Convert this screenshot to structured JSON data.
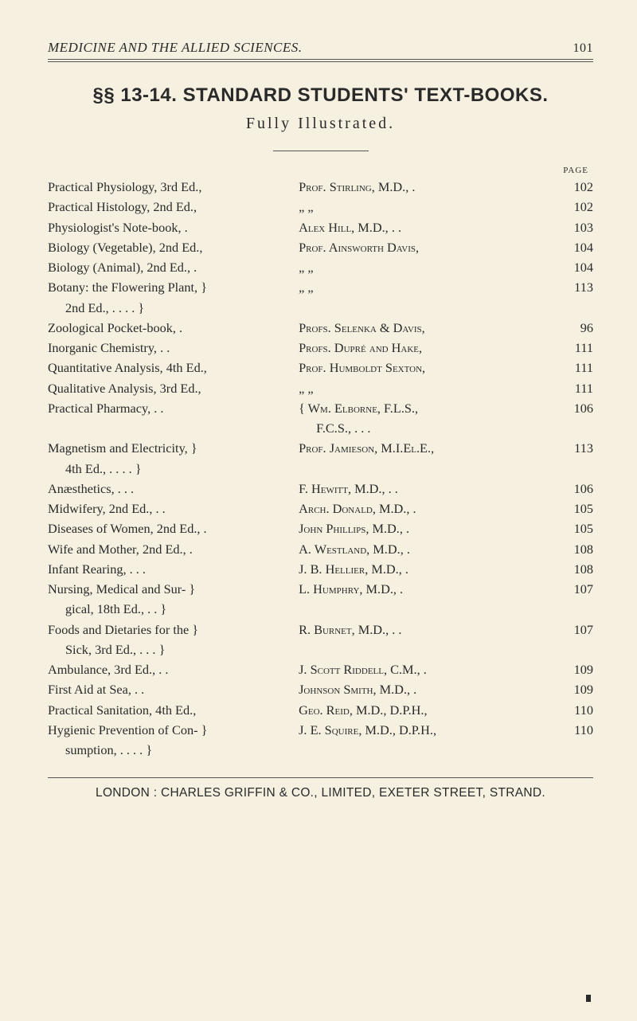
{
  "running_head": {
    "title": "MEDICINE AND THE ALLIED SCIENCES.",
    "page_number": "101"
  },
  "section": "§§ 13-14. STANDARD STUDENTS' TEXT-BOOKS.",
  "subtitle": "Fully Illustrated.",
  "page_label": "PAGE",
  "rows": [
    {
      "title": "Practical Physiology, 3rd Ed.,",
      "author": "Prof. Stirling, M.D., .",
      "page": "102"
    },
    {
      "title": "Practical Histology, 2nd Ed.,",
      "author": "„          „",
      "page": "102"
    },
    {
      "title": "Physiologist's Note-book,    .",
      "author": "Alex Hill, M.D., .    .",
      "page": "103"
    },
    {
      "title": "Biology (Vegetable), 2nd Ed.,",
      "author": "Prof. Ainsworth Davis,",
      "page": "104"
    },
    {
      "title": "Biology (Animal), 2nd Ed.,  .",
      "author": "„             „",
      "page": "104"
    },
    {
      "title": "Botany: the Flowering Plant, }\n  2nd Ed., .    .    .    . }",
      "author": "„             „",
      "page": "113"
    },
    {
      "title": "Zoological Pocket-book,     .",
      "author": "Profs. Selenka & Davis,",
      "page": "96"
    },
    {
      "title": "Inorganic Chemistry,  .    .",
      "author": "Profs. Dupré and Hake,",
      "page": "111"
    },
    {
      "title": "Quantitative Analysis, 4th Ed.,",
      "author": "Prof. Humboldt Sexton,",
      "page": "111"
    },
    {
      "title": "Qualitative Analysis, 3rd Ed.,",
      "author": "„             „",
      "page": "111"
    },
    {
      "title": "Practical Pharmacy,   .    .",
      "author": "{ Wm. Elborne, F.L.S.,\n  F.C.S.,    .    .    .",
      "page": "106"
    },
    {
      "title": "Magnetism and Electricity, }\n  4th Ed., .    .    .    . }",
      "author": "Prof. Jamieson, M.I.El.E.,",
      "page": "113"
    },
    {
      "title": "Anæsthetics,    .    .    .",
      "author": "F. Hewitt, M.D., .    .",
      "page": "106"
    },
    {
      "title": "Midwifery, 2nd Ed.,   .    .",
      "author": "Arch. Donald, M.D.,  .",
      "page": "105"
    },
    {
      "title": "Diseases of Women, 2nd Ed., .",
      "author": "John Phillips, M.D., .",
      "page": "105"
    },
    {
      "title": "Wife and Mother, 2nd Ed.,  .",
      "author": "A. Westland, M.D.,   .",
      "page": "108"
    },
    {
      "title": "Infant Rearing,  .    .    .",
      "author": "J. B. Hellier, M.D., .",
      "page": "108"
    },
    {
      "title": "Nursing, Medical and Sur- }\n  gical, 18th Ed.,   .    . }",
      "author": "L. Humphry, M.D.,    .",
      "page": "107"
    },
    {
      "title": "Foods and Dietaries for the }\n  Sick, 3rd Ed., .    .    . }",
      "author": "R. Burnet, M.D., .   .",
      "page": "107"
    },
    {
      "title": "Ambulance, 3rd Ed.,   .    .",
      "author": "J. Scott Riddell, C.M., .",
      "page": "109"
    },
    {
      "title": "First Aid at Sea,    .    .",
      "author": "Johnson Smith, M.D., .",
      "page": "109"
    },
    {
      "title": "Practical Sanitation, 4th Ed.,",
      "author": "Geo. Reid, M.D., D.P.H.,",
      "page": "110"
    },
    {
      "title": "Hygienic Prevention of Con- }\n  sumption, .    .    .    . }",
      "author": "J. E. Squire, M.D., D.P.H.,",
      "page": "110"
    }
  ],
  "imprint": "LONDON : CHARLES GRIFFIN & CO., LIMITED, EXETER STREET, STRAND."
}
